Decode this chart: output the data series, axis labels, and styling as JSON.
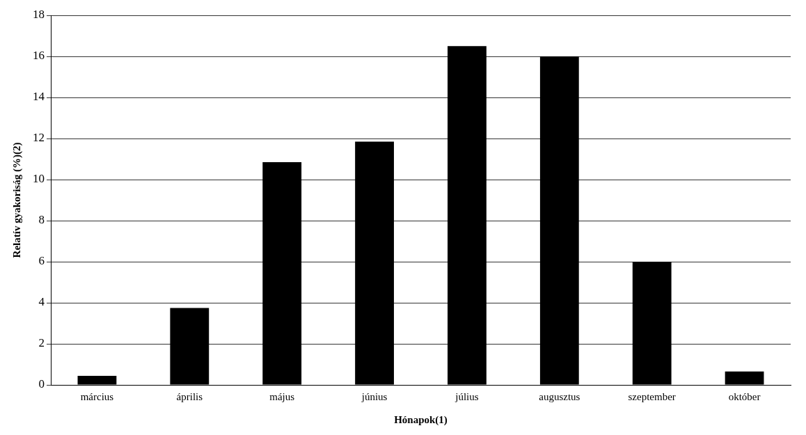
{
  "chart_data": {
    "type": "bar",
    "xlabel": "Hónapok(1)",
    "ylabel": "Relatív gyakoriság (%)(2)",
    "categories": [
      "március",
      "április",
      "május",
      "június",
      "július",
      "augusztus",
      "szeptember",
      "október"
    ],
    "values": [
      0.44,
      3.75,
      10.85,
      11.85,
      16.5,
      16.0,
      6.0,
      0.65
    ],
    "color": "#000000",
    "ylim": [
      0,
      18
    ],
    "yticks": [
      0,
      2,
      4,
      6,
      8,
      10,
      12,
      14,
      16,
      18
    ],
    "grid": "y",
    "legend": false
  }
}
